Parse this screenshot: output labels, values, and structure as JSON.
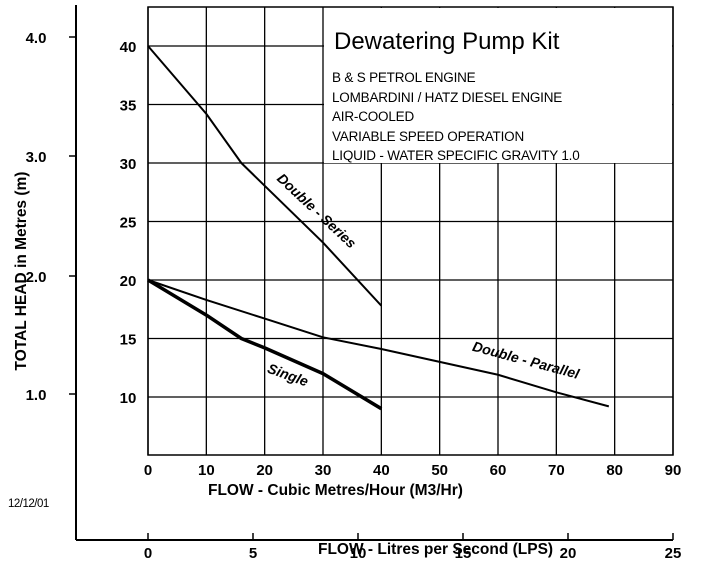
{
  "legend": {
    "title": "Dewatering Pump Kit",
    "lines": [
      "B & S  PETROL ENGINE",
      "LOMBARDINI / HATZ DIESEL ENGINE",
      "AIR-COOLED",
      "VARIABLE SPEED OPERATION",
      "LIQUID -  WATER SPECIFIC GRAVITY 1.0"
    ]
  },
  "date_stamp": "12/12/01",
  "axes": {
    "x_primary_label": "FLOW - Cubic Metres/Hour (M3/Hr)",
    "x_secondary_label": "FLOW - Litres per Second (LPS)",
    "y_label": "TOTAL HEAD in Metres (m)"
  },
  "curve_labels": {
    "series": "Double - Series",
    "parallel": "Double - Parallel",
    "single": "Single"
  },
  "chart_data": {
    "type": "line",
    "title": "Dewatering Pump Kit",
    "subtitle": [
      "B & S  PETROL ENGINE",
      "LOMBARDINI / HATZ DIESEL ENGINE",
      "AIR-COOLED",
      "VARIABLE SPEED OPERATION",
      "LIQUID -  WATER SPECIFIC GRAVITY 1.0"
    ],
    "xlabel": "FLOW - Cubic Metres/Hour (M3/Hr)",
    "xlabel_secondary": "FLOW - Litres per Second (LPS)",
    "ylabel": "TOTAL HEAD in Metres (m)",
    "xlim": [
      0,
      90
    ],
    "ylim": [
      5,
      43
    ],
    "x_ticks": [
      0,
      10,
      20,
      30,
      40,
      50,
      60,
      70,
      80,
      90
    ],
    "x_secondary_ticks": [
      0,
      5,
      10,
      15,
      20,
      25
    ],
    "y_ticks": [
      10,
      15,
      20,
      25,
      30,
      35,
      40
    ],
    "y_secondary_ticks": [
      "1.0",
      "2.0",
      "3.0",
      "4.0"
    ],
    "grid": true,
    "series": [
      {
        "name": "Double - Series",
        "x": [
          0,
          10,
          16,
          30,
          40
        ],
        "y": [
          40,
          34.2,
          30,
          23.2,
          17.8
        ]
      },
      {
        "name": "Double - Parallel",
        "x": [
          0,
          10,
          20,
          30,
          40,
          50,
          60,
          70,
          79
        ],
        "y": [
          20,
          18.3,
          16.7,
          15.1,
          14.1,
          13.0,
          11.9,
          10.4,
          9.2
        ]
      },
      {
        "name": "Single",
        "x": [
          0,
          10,
          16,
          20,
          30,
          40
        ],
        "y": [
          20,
          17,
          15,
          14.2,
          12,
          9
        ]
      }
    ]
  }
}
